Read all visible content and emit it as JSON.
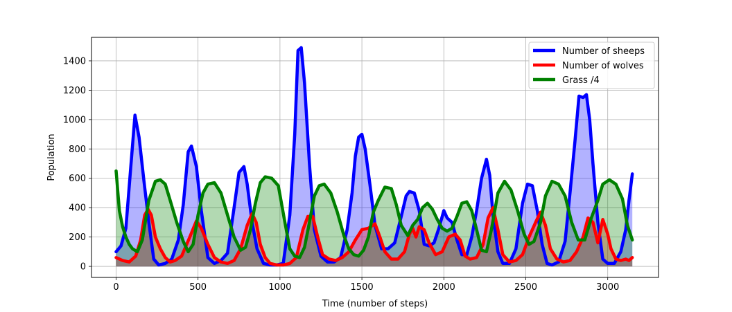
{
  "chart_data": {
    "type": "line",
    "title": "",
    "xlabel": "Time (number of steps)",
    "ylabel": "Population",
    "xlim": [
      -150,
      3310
    ],
    "ylim": [
      -75,
      1560
    ],
    "xticks": [
      0,
      500,
      1000,
      1500,
      2000,
      2500,
      3000
    ],
    "yticks": [
      0,
      200,
      400,
      600,
      800,
      1000,
      1200,
      1400
    ],
    "grid": true,
    "legend_position": "top-right",
    "series": [
      {
        "name": "Number of sheeps",
        "color": "#0000ff",
        "fill": "rgba(0,0,255,0.3)",
        "x": [
          0,
          30,
          60,
          90,
          115,
          140,
          170,
          200,
          230,
          260,
          300,
          340,
          380,
          410,
          440,
          460,
          490,
          520,
          560,
          600,
          640,
          680,
          720,
          750,
          780,
          800,
          830,
          860,
          900,
          940,
          980,
          1020,
          1060,
          1090,
          1110,
          1130,
          1150,
          1180,
          1210,
          1250,
          1290,
          1330,
          1370,
          1410,
          1440,
          1460,
          1480,
          1500,
          1520,
          1550,
          1580,
          1620,
          1660,
          1700,
          1740,
          1770,
          1790,
          1820,
          1850,
          1880,
          1910,
          1940,
          1970,
          2000,
          2020,
          2050,
          2080,
          2110,
          2140,
          2170,
          2200,
          2230,
          2260,
          2280,
          2300,
          2330,
          2360,
          2400,
          2440,
          2480,
          2510,
          2540,
          2570,
          2600,
          2630,
          2660,
          2700,
          2740,
          2770,
          2800,
          2825,
          2850,
          2870,
          2890,
          2910,
          2940,
          2970,
          3000,
          3040,
          3080,
          3110,
          3130,
          3150
        ],
        "values": [
          100,
          140,
          260,
          680,
          1030,
          880,
          580,
          300,
          50,
          10,
          20,
          50,
          180,
          420,
          780,
          820,
          680,
          380,
          60,
          20,
          40,
          90,
          400,
          640,
          680,
          560,
          300,
          120,
          20,
          10,
          10,
          20,
          350,
          900,
          1470,
          1490,
          1250,
          700,
          250,
          70,
          30,
          30,
          60,
          250,
          500,
          750,
          880,
          900,
          800,
          550,
          280,
          120,
          120,
          160,
          340,
          480,
          510,
          500,
          380,
          150,
          140,
          160,
          260,
          380,
          330,
          300,
          180,
          80,
          80,
          200,
          380,
          600,
          730,
          620,
          350,
          100,
          20,
          20,
          120,
          430,
          560,
          550,
          380,
          150,
          20,
          10,
          30,
          170,
          500,
          850,
          1160,
          1150,
          1170,
          1000,
          700,
          300,
          50,
          20,
          20,
          100,
          250,
          450,
          630
        ]
      },
      {
        "name": "Number of wolves",
        "color": "#ff0000",
        "fill": "rgba(255,0,0,0.3)",
        "x": [
          0,
          40,
          80,
          120,
          150,
          175,
          195,
          215,
          240,
          270,
          300,
          330,
          360,
          400,
          450,
          490,
          520,
          560,
          600,
          640,
          680,
          720,
          760,
          800,
          830,
          855,
          880,
          910,
          940,
          980,
          1020,
          1060,
          1100,
          1140,
          1170,
          1200,
          1230,
          1260,
          1300,
          1340,
          1380,
          1420,
          1460,
          1500,
          1540,
          1580,
          1610,
          1640,
          1680,
          1720,
          1760,
          1790,
          1810,
          1830,
          1850,
          1880,
          1910,
          1950,
          1990,
          2030,
          2070,
          2100,
          2130,
          2160,
          2200,
          2240,
          2270,
          2300,
          2330,
          2360,
          2400,
          2440,
          2480,
          2520,
          2560,
          2590,
          2620,
          2650,
          2690,
          2730,
          2770,
          2810,
          2850,
          2880,
          2910,
          2940,
          2970,
          3000,
          3020,
          3050,
          3080,
          3110,
          3130,
          3150
        ],
        "values": [
          60,
          40,
          30,
          70,
          180,
          350,
          390,
          350,
          200,
          120,
          60,
          30,
          40,
          70,
          200,
          310,
          260,
          150,
          60,
          30,
          20,
          40,
          120,
          280,
          360,
          300,
          150,
          60,
          20,
          10,
          10,
          20,
          60,
          250,
          340,
          340,
          200,
          80,
          50,
          40,
          60,
          100,
          180,
          250,
          260,
          290,
          200,
          100,
          50,
          50,
          100,
          220,
          260,
          200,
          270,
          250,
          160,
          80,
          100,
          200,
          220,
          180,
          70,
          50,
          60,
          150,
          330,
          400,
          250,
          80,
          30,
          40,
          80,
          200,
          300,
          370,
          280,
          120,
          50,
          30,
          40,
          100,
          200,
          330,
          300,
          160,
          320,
          220,
          120,
          50,
          40,
          50,
          40,
          60
        ]
      },
      {
        "name": "Grass /4",
        "color": "#008000",
        "fill": "rgba(0,128,0,0.3)",
        "x": [
          0,
          20,
          40,
          60,
          80,
          100,
          130,
          160,
          200,
          240,
          270,
          300,
          330,
          370,
          410,
          440,
          470,
          500,
          530,
          560,
          600,
          640,
          680,
          720,
          760,
          790,
          820,
          850,
          880,
          910,
          950,
          990,
          1030,
          1060,
          1090,
          1120,
          1150,
          1180,
          1210,
          1240,
          1270,
          1310,
          1350,
          1390,
          1420,
          1450,
          1480,
          1510,
          1540,
          1570,
          1600,
          1640,
          1680,
          1710,
          1740,
          1780,
          1810,
          1840,
          1870,
          1900,
          1930,
          1960,
          1990,
          2020,
          2050,
          2080,
          2110,
          2140,
          2170,
          2200,
          2230,
          2260,
          2290,
          2330,
          2370,
          2410,
          2450,
          2490,
          2520,
          2550,
          2590,
          2620,
          2660,
          2700,
          2740,
          2780,
          2820,
          2860,
          2900,
          2940,
          2970,
          3010,
          3050,
          3090,
          3120,
          3150
        ],
        "values": [
          650,
          380,
          270,
          200,
          150,
          120,
          100,
          180,
          450,
          580,
          590,
          560,
          450,
          300,
          170,
          100,
          150,
          350,
          500,
          560,
          570,
          500,
          350,
          200,
          110,
          130,
          250,
          430,
          570,
          610,
          600,
          550,
          300,
          120,
          70,
          60,
          130,
          300,
          480,
          550,
          560,
          500,
          370,
          210,
          120,
          80,
          70,
          110,
          200,
          370,
          450,
          540,
          530,
          420,
          280,
          210,
          280,
          320,
          400,
          430,
          390,
          320,
          260,
          240,
          260,
          340,
          430,
          440,
          380,
          250,
          110,
          100,
          250,
          500,
          580,
          520,
          380,
          220,
          150,
          170,
          300,
          480,
          580,
          560,
          480,
          300,
          180,
          180,
          330,
          450,
          560,
          590,
          560,
          460,
          280,
          180
        ]
      }
    ]
  }
}
